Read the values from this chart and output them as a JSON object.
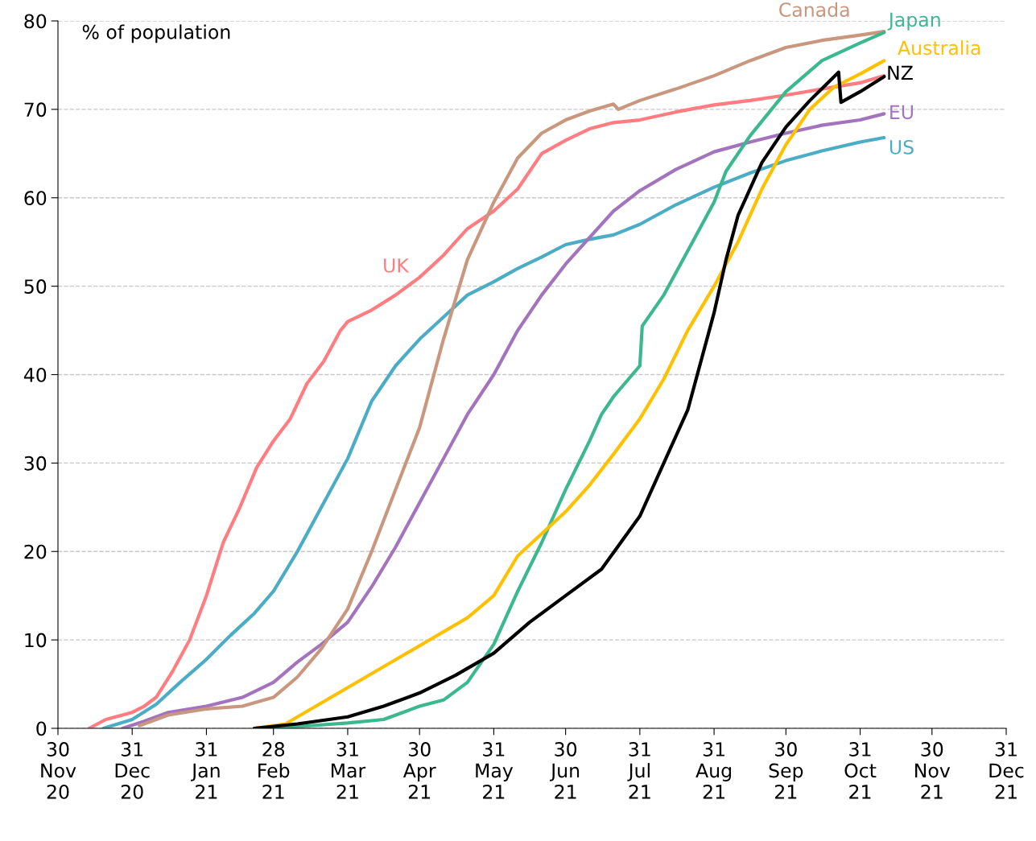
{
  "chart_data": {
    "type": "line",
    "ylabel": "% of population",
    "xlim": [
      "2020-11-30",
      "2021-12-31"
    ],
    "ylim": [
      0,
      80
    ],
    "yticks": [
      0,
      10,
      20,
      30,
      40,
      50,
      60,
      70,
      80
    ],
    "xticks": [
      {
        "value": "2020-11-30",
        "label": "30\nNov\n20"
      },
      {
        "value": "2020-12-31",
        "label": "31\nDec\n20"
      },
      {
        "value": "2021-01-31",
        "label": "31\nJan\n21"
      },
      {
        "value": "2021-02-28",
        "label": "28\nFeb\n21"
      },
      {
        "value": "2021-03-31",
        "label": "31\nMar\n21"
      },
      {
        "value": "2021-04-30",
        "label": "30\nApr\n21"
      },
      {
        "value": "2021-05-31",
        "label": "31\nMay\n21"
      },
      {
        "value": "2021-06-30",
        "label": "30\nJun\n21"
      },
      {
        "value": "2021-07-31",
        "label": "31\nJul\n21"
      },
      {
        "value": "2021-08-31",
        "label": "31\nAug\n21"
      },
      {
        "value": "2021-09-30",
        "label": "30\nSep\n21"
      },
      {
        "value": "2021-10-31",
        "label": "31\nOct\n21"
      },
      {
        "value": "2021-11-30",
        "label": "30\nNov\n21"
      },
      {
        "value": "2021-12-31",
        "label": "31\nDec\n21"
      }
    ],
    "grid": "y",
    "legend": false,
    "marker": "none",
    "line_style": "solid",
    "series": [
      {
        "name": "UK",
        "color": "#ff7c80",
        "x": [
          "2020-12-13",
          "2020-12-20",
          "2020-12-31",
          "2021-01-05",
          "2021-01-10",
          "2021-01-17",
          "2021-01-24",
          "2021-01-31",
          "2021-02-07",
          "2021-02-14",
          "2021-02-21",
          "2021-02-28",
          "2021-03-07",
          "2021-03-14",
          "2021-03-21",
          "2021-03-28",
          "2021-03-31",
          "2021-04-10",
          "2021-04-20",
          "2021-04-30",
          "2021-05-10",
          "2021-05-20",
          "2021-05-31",
          "2021-06-10",
          "2021-06-20",
          "2021-06-30",
          "2021-07-10",
          "2021-07-20",
          "2021-07-31",
          "2021-08-15",
          "2021-08-31",
          "2021-09-15",
          "2021-09-30",
          "2021-10-15",
          "2021-10-31",
          "2021-11-10"
        ],
        "values": [
          0,
          1.0,
          1.8,
          2.5,
          3.5,
          6.5,
          10,
          15,
          21,
          25,
          29.5,
          32.5,
          35,
          39,
          41.5,
          45,
          46,
          47.3,
          49,
          51,
          53.5,
          56.5,
          58.5,
          61,
          65,
          66.5,
          67.8,
          68.5,
          68.8,
          69.7,
          70.5,
          71.0,
          71.6,
          72.3,
          73.0,
          73.8
        ]
      },
      {
        "name": "US",
        "color": "#4bacc6",
        "x": [
          "2020-12-19",
          "2020-12-31",
          "2021-01-10",
          "2021-01-20",
          "2021-01-31",
          "2021-02-10",
          "2021-02-20",
          "2021-02-28",
          "2021-03-10",
          "2021-03-20",
          "2021-03-31",
          "2021-04-10",
          "2021-04-20",
          "2021-04-30",
          "2021-05-10",
          "2021-05-20",
          "2021-05-31",
          "2021-06-10",
          "2021-06-20",
          "2021-06-30",
          "2021-07-10",
          "2021-07-20",
          "2021-07-31",
          "2021-08-15",
          "2021-08-31",
          "2021-09-15",
          "2021-09-30",
          "2021-10-15",
          "2021-10-31",
          "2021-11-10"
        ],
        "values": [
          0,
          1.0,
          2.7,
          5.2,
          7.8,
          10.5,
          13,
          15.5,
          20,
          25,
          30.5,
          37,
          41,
          44,
          46.5,
          49,
          50.5,
          52,
          53.3,
          54.7,
          55.3,
          55.8,
          57,
          59.2,
          61.2,
          62.8,
          64.2,
          65.3,
          66.3,
          66.8
        ]
      },
      {
        "name": "EU",
        "color": "#a374bd",
        "x": [
          "2020-12-27",
          "2021-01-05",
          "2021-01-15",
          "2021-01-31",
          "2021-02-15",
          "2021-02-28",
          "2021-03-10",
          "2021-03-20",
          "2021-03-31",
          "2021-04-10",
          "2021-04-20",
          "2021-04-30",
          "2021-05-10",
          "2021-05-20",
          "2021-05-31",
          "2021-06-10",
          "2021-06-20",
          "2021-06-30",
          "2021-07-10",
          "2021-07-20",
          "2021-07-31",
          "2021-08-15",
          "2021-08-31",
          "2021-09-15",
          "2021-09-30",
          "2021-10-15",
          "2021-10-31",
          "2021-11-10"
        ],
        "values": [
          0,
          0.8,
          1.8,
          2.5,
          3.5,
          5.2,
          7.5,
          9.5,
          12.0,
          16,
          20.5,
          25.5,
          30.5,
          35.5,
          40,
          45,
          49,
          52.5,
          55.5,
          58.5,
          60.8,
          63.2,
          65.2,
          66.3,
          67.3,
          68.2,
          68.8,
          69.5
        ]
      },
      {
        "name": "Canada",
        "color": "#c9967e",
        "x": [
          "2021-01-03",
          "2021-01-15",
          "2021-01-31",
          "2021-02-15",
          "2021-02-28",
          "2021-03-10",
          "2021-03-20",
          "2021-03-31",
          "2021-04-10",
          "2021-04-20",
          "2021-04-30",
          "2021-05-10",
          "2021-05-20",
          "2021-05-31",
          "2021-06-10",
          "2021-06-20",
          "2021-06-30",
          "2021-07-10",
          "2021-07-20",
          "2021-07-22",
          "2021-07-31",
          "2021-08-15",
          "2021-08-31",
          "2021-09-15",
          "2021-09-30",
          "2021-10-15",
          "2021-10-31",
          "2021-11-10"
        ],
        "values": [
          0.3,
          1.5,
          2.2,
          2.5,
          3.5,
          5.8,
          9,
          13.5,
          20,
          27,
          34,
          44,
          53,
          59.5,
          64.5,
          67.3,
          68.8,
          69.8,
          70.6,
          70.0,
          71.0,
          72.3,
          73.8,
          75.5,
          77.0,
          77.8,
          78.4,
          78.8
        ]
      },
      {
        "name": "Japan",
        "color": "#3bb88e",
        "x": [
          "2021-02-28",
          "2021-03-15",
          "2021-03-31",
          "2021-04-15",
          "2021-04-30",
          "2021-05-10",
          "2021-05-20",
          "2021-05-31",
          "2021-06-10",
          "2021-06-20",
          "2021-06-30",
          "2021-07-10",
          "2021-07-15",
          "2021-07-20",
          "2021-07-31",
          "2021-08-01",
          "2021-08-10",
          "2021-08-20",
          "2021-08-31",
          "2021-09-05",
          "2021-09-15",
          "2021-09-30",
          "2021-10-15",
          "2021-10-31",
          "2021-11-10"
        ],
        "values": [
          0,
          0.3,
          0.6,
          1.0,
          2.5,
          3.2,
          5.2,
          9.5,
          15.5,
          21,
          27,
          32.5,
          35.5,
          37.5,
          41,
          45.5,
          49,
          54,
          59.5,
          63,
          67,
          72,
          75.5,
          77.5,
          78.7
        ]
      },
      {
        "name": "Australia",
        "color": "#ffc000",
        "x": [
          "2021-02-20",
          "2021-03-05",
          "2021-05-20",
          "2021-05-31",
          "2021-06-10",
          "2021-06-20",
          "2021-06-30",
          "2021-07-10",
          "2021-07-20",
          "2021-07-31",
          "2021-08-10",
          "2021-08-20",
          "2021-08-31",
          "2021-09-10",
          "2021-09-20",
          "2021-09-30",
          "2021-10-10",
          "2021-10-20",
          "2021-10-31",
          "2021-11-10"
        ],
        "values": [
          0,
          0.5,
          12.5,
          15,
          19.5,
          22,
          24.5,
          27.5,
          31,
          35,
          39.5,
          45,
          50,
          55,
          61,
          66,
          70,
          72.5,
          74,
          75.5
        ]
      },
      {
        "name": "NZ",
        "color": "#000000",
        "x": [
          "2021-02-20",
          "2021-03-10",
          "2021-03-31",
          "2021-04-15",
          "2021-04-30",
          "2021-05-15",
          "2021-05-31",
          "2021-06-15",
          "2021-06-30",
          "2021-07-15",
          "2021-07-31",
          "2021-08-10",
          "2021-08-20",
          "2021-08-31",
          "2021-09-05",
          "2021-09-10",
          "2021-09-20",
          "2021-09-30",
          "2021-10-10",
          "2021-10-22",
          "2021-10-23",
          "2021-10-31",
          "2021-11-10"
        ],
        "values": [
          0,
          0.5,
          1.3,
          2.5,
          4,
          6,
          8.5,
          12,
          15,
          18,
          24,
          30,
          36,
          47,
          53,
          58,
          64,
          68,
          71,
          74.2,
          70.8,
          72,
          73.7
        ]
      }
    ]
  }
}
